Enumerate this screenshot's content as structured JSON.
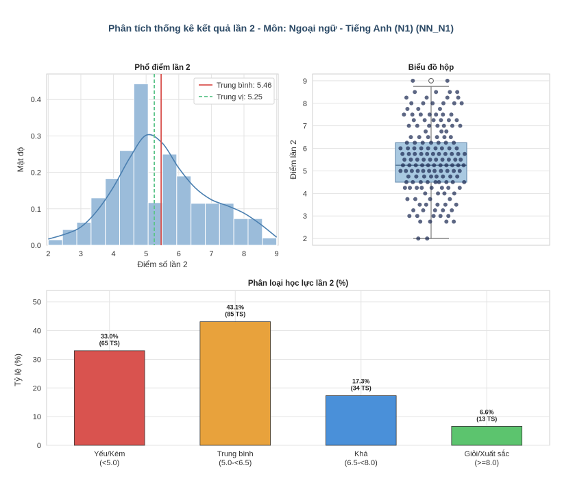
{
  "title": "Phân tích thống kê kết quả lần 2 - Môn: Ngoại ngữ - Tiếng Anh (N1) (NN_N1)",
  "colors": {
    "title": "#2c4a66",
    "hist_bar": "#9bbcda",
    "kde": "#4a7fb0",
    "mean_line": "#d9534f",
    "median_line": "#5cc48a",
    "box_fill": "#a9c9e1",
    "points": "#1f2d55",
    "grid": "#e3e3e3"
  },
  "chart_data": [
    {
      "type": "bar",
      "title": "Phổ điểm lần 2",
      "xlabel": "Điểm số lần 2",
      "ylabel": "Mật độ",
      "xlim": [
        1.95,
        9.05
      ],
      "ylim": [
        0,
        0.47
      ],
      "xticks": [
        2,
        3,
        4,
        5,
        6,
        7,
        8,
        9
      ],
      "yticks": [
        0.0,
        0.1,
        0.2,
        0.3,
        0.4
      ],
      "ytick_labels": [
        "0.0",
        "0.1",
        "0.2",
        "0.3",
        "0.4"
      ],
      "bin_edges": [
        2.0,
        2.4375,
        2.875,
        3.3125,
        3.75,
        4.1875,
        4.625,
        5.0625,
        5.5,
        5.9375,
        6.375,
        6.8125,
        7.25,
        7.6875,
        8.125,
        8.5625,
        9.0
      ],
      "values": [
        0.015,
        0.043,
        0.063,
        0.13,
        0.183,
        0.26,
        0.443,
        0.117,
        0.25,
        0.19,
        0.115,
        0.115,
        0.115,
        0.073,
        0.073,
        0.02
      ],
      "kde": {
        "x": [
          2.0,
          2.5,
          3.0,
          3.5,
          4.0,
          4.5,
          5.0,
          5.5,
          6.0,
          6.5,
          7.0,
          7.5,
          8.0,
          8.5,
          9.0
        ],
        "y": [
          0.017,
          0.03,
          0.05,
          0.095,
          0.16,
          0.24,
          0.302,
          0.28,
          0.212,
          0.158,
          0.125,
          0.108,
          0.088,
          0.058,
          0.022
        ]
      },
      "mean": 5.46,
      "median": 5.25,
      "legend": [
        "Trung bình: 5.46",
        "Trung vị: 5.25"
      ],
      "legend_position": "top-right",
      "grid": true
    },
    {
      "type": "box",
      "title": "Biểu đồ hộp",
      "ylabel": "Điểm lần 2",
      "ylim": [
        1.7,
        9.3
      ],
      "yticks": [
        2,
        3,
        4,
        5,
        6,
        7,
        8,
        9
      ],
      "whisker_low": 2.0,
      "q1": 4.5,
      "median": 5.25,
      "q3": 6.25,
      "whisker_high": 8.75,
      "outliers": [
        9.0
      ],
      "points": [
        [
          -0.37,
          9.0
        ],
        [
          0.33,
          9.0
        ],
        [
          -0.26,
          2.0
        ],
        [
          -0.08,
          2.0
        ],
        [
          -0.22,
          2.75
        ],
        [
          -0.02,
          2.75
        ],
        [
          0.31,
          2.75
        ],
        [
          0.46,
          2.75
        ],
        [
          -0.44,
          3.0
        ],
        [
          -0.28,
          3.0
        ],
        [
          0.05,
          3.0
        ],
        [
          0.19,
          3.0
        ],
        [
          0.35,
          3.0
        ],
        [
          -0.36,
          3.25
        ],
        [
          -0.16,
          3.25
        ],
        [
          0.08,
          3.25
        ],
        [
          0.24,
          3.25
        ],
        [
          0.42,
          3.25
        ],
        [
          -0.1,
          3.5
        ],
        [
          -0.23,
          3.5
        ],
        [
          0.13,
          3.5
        ],
        [
          0.29,
          3.5
        ],
        [
          0.51,
          3.5
        ],
        [
          -0.48,
          3.75
        ],
        [
          -0.32,
          3.75
        ],
        [
          -0.02,
          3.75
        ],
        [
          0.38,
          3.75
        ],
        [
          -0.12,
          4.0
        ],
        [
          0.14,
          4.0
        ],
        [
          0.27,
          4.0
        ],
        [
          0.47,
          4.0
        ],
        [
          -0.53,
          4.25
        ],
        [
          -0.43,
          4.25
        ],
        [
          -0.29,
          4.25
        ],
        [
          -0.19,
          4.25
        ],
        [
          0.01,
          4.25
        ],
        [
          0.22,
          4.25
        ],
        [
          0.35,
          4.25
        ],
        [
          0.58,
          4.25
        ],
        [
          -0.5,
          4.5
        ],
        [
          -0.37,
          4.5
        ],
        [
          -0.21,
          4.5
        ],
        [
          -0.07,
          4.5
        ],
        [
          0.09,
          4.5
        ],
        [
          0.16,
          4.5
        ],
        [
          0.31,
          4.5
        ],
        [
          0.44,
          4.5
        ],
        [
          0.67,
          4.5
        ],
        [
          -0.46,
          4.75
        ],
        [
          -0.3,
          4.75
        ],
        [
          -0.14,
          4.75
        ],
        [
          0.0,
          4.75
        ],
        [
          0.11,
          4.75
        ],
        [
          0.24,
          4.75
        ],
        [
          0.39,
          4.75
        ],
        [
          0.53,
          4.75
        ],
        [
          -0.62,
          5.0
        ],
        [
          -0.51,
          5.0
        ],
        [
          -0.39,
          5.0
        ],
        [
          -0.27,
          5.0
        ],
        [
          -0.16,
          5.0
        ],
        [
          -0.04,
          5.0
        ],
        [
          0.07,
          5.0
        ],
        [
          0.2,
          5.0
        ],
        [
          0.33,
          5.0
        ],
        [
          0.46,
          5.0
        ],
        [
          0.58,
          5.0
        ],
        [
          -0.57,
          5.25
        ],
        [
          -0.44,
          5.25
        ],
        [
          -0.31,
          5.25
        ],
        [
          -0.18,
          5.25
        ],
        [
          -0.06,
          5.25
        ],
        [
          0.06,
          5.25
        ],
        [
          0.19,
          5.25
        ],
        [
          0.31,
          5.25
        ],
        [
          0.43,
          5.25
        ],
        [
          0.55,
          5.25
        ],
        [
          0.66,
          5.25
        ],
        [
          -0.54,
          5.5
        ],
        [
          -0.41,
          5.5
        ],
        [
          -0.28,
          5.5
        ],
        [
          -0.15,
          5.5
        ],
        [
          -0.02,
          5.5
        ],
        [
          0.1,
          5.5
        ],
        [
          0.23,
          5.5
        ],
        [
          0.36,
          5.5
        ],
        [
          0.49,
          5.5
        ],
        [
          0.6,
          5.5
        ],
        [
          -0.58,
          5.75
        ],
        [
          -0.45,
          5.75
        ],
        [
          -0.33,
          5.75
        ],
        [
          -0.2,
          5.75
        ],
        [
          -0.08,
          5.75
        ],
        [
          0.04,
          5.75
        ],
        [
          0.16,
          5.75
        ],
        [
          0.29,
          5.75
        ],
        [
          0.42,
          5.75
        ],
        [
          0.55,
          5.75
        ],
        [
          0.68,
          5.75
        ],
        [
          -0.62,
          6.0
        ],
        [
          -0.47,
          6.0
        ],
        [
          -0.34,
          6.0
        ],
        [
          -0.2,
          6.0
        ],
        [
          -0.06,
          6.0
        ],
        [
          0.09,
          6.0
        ],
        [
          0.22,
          6.0
        ],
        [
          0.37,
          6.0
        ],
        [
          0.52,
          6.0
        ],
        [
          -0.49,
          6.25
        ],
        [
          -0.33,
          6.25
        ],
        [
          -0.17,
          6.25
        ],
        [
          0.0,
          6.25
        ],
        [
          0.15,
          6.25
        ],
        [
          0.3,
          6.25
        ],
        [
          0.46,
          6.25
        ],
        [
          -0.41,
          6.5
        ],
        [
          -0.24,
          6.5
        ],
        [
          -0.06,
          6.5
        ],
        [
          0.12,
          6.5
        ],
        [
          0.27,
          6.5
        ],
        [
          0.4,
          6.5
        ],
        [
          -0.11,
          6.75
        ],
        [
          0.21,
          6.75
        ],
        [
          0.31,
          6.75
        ],
        [
          -0.45,
          7.0
        ],
        [
          -0.28,
          7.0
        ],
        [
          -0.04,
          7.0
        ],
        [
          0.13,
          7.0
        ],
        [
          0.26,
          7.0
        ],
        [
          0.43,
          7.0
        ],
        [
          0.59,
          7.0
        ],
        [
          -0.35,
          7.25
        ],
        [
          -0.13,
          7.25
        ],
        [
          0.05,
          7.25
        ],
        [
          0.2,
          7.25
        ],
        [
          0.36,
          7.25
        ],
        [
          0.52,
          7.25
        ],
        [
          -0.55,
          7.5
        ],
        [
          -0.38,
          7.5
        ],
        [
          -0.21,
          7.5
        ],
        [
          -0.03,
          7.5
        ],
        [
          0.1,
          7.5
        ],
        [
          0.24,
          7.5
        ],
        [
          0.41,
          7.5
        ],
        [
          -0.48,
          7.75
        ],
        [
          -0.26,
          7.75
        ],
        [
          0.18,
          7.75
        ],
        [
          -0.4,
          8.0
        ],
        [
          -0.16,
          8.0
        ],
        [
          0.03,
          8.0
        ],
        [
          0.25,
          8.0
        ],
        [
          0.47,
          8.0
        ],
        [
          0.62,
          8.0
        ],
        [
          -0.5,
          8.25
        ],
        [
          -0.09,
          8.25
        ],
        [
          0.33,
          8.25
        ],
        [
          0.55,
          8.25
        ],
        [
          -0.33,
          8.5
        ],
        [
          0.1,
          8.5
        ],
        [
          0.38,
          8.5
        ],
        [
          0.53,
          8.5
        ]
      ],
      "grid": true
    },
    {
      "type": "bar",
      "title": "Phân loại học lực lần 2 (%)",
      "ylabel": "Tỷ lệ (%)",
      "ylim": [
        0,
        54
      ],
      "yticks": [
        0,
        10,
        20,
        30,
        40,
        50
      ],
      "categories": [
        {
          "name": "Yếu/Kém",
          "range": "(<5.0)"
        },
        {
          "name": "Trung bình",
          "range": "(5.0-<6.5)"
        },
        {
          "name": "Khá",
          "range": "(6.5-<8.0)"
        },
        {
          "name": "Giỏi/Xuất sắc",
          "range": "(>=8.0)"
        }
      ],
      "values": [
        33.0,
        43.1,
        17.3,
        6.6
      ],
      "value_labels": [
        "33.0%",
        "43.1%",
        "17.3%",
        "6.6%"
      ],
      "counts": [
        "(65 TS)",
        "(85 TS)",
        "(34 TS)",
        "(13 TS)"
      ],
      "bar_colors": [
        "#d9534f",
        "#e8a23c",
        "#4a90d9",
        "#5cc46e"
      ],
      "grid": true
    }
  ]
}
